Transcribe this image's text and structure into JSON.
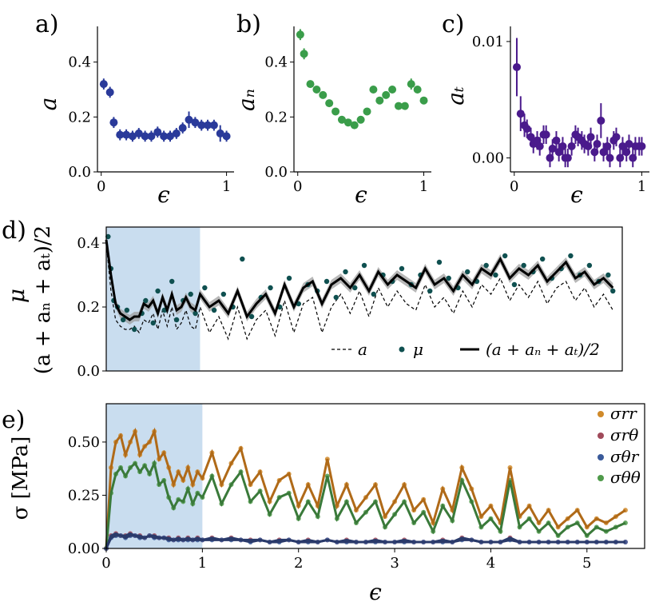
{
  "colors": {
    "a": "#2a3a9a",
    "an": "#3a9d4a",
    "at": "#4a1a8c",
    "mu": "#0f5050",
    "band": "#c9ddef",
    "rr": "#d08a2a",
    "rtheta": "#a04a5a",
    "thetar": "#3a5a9a",
    "thth": "#4f9a4a"
  },
  "chart_data": [
    {
      "id": "a",
      "type": "scatter",
      "panel_label": "a)",
      "ylabel": "a",
      "xlabel": "ϵ",
      "xlim": [
        -0.03,
        1.06
      ],
      "ylim": [
        0.0,
        0.53
      ],
      "xticks": [
        0,
        1
      ],
      "xtick_labels": [
        "0",
        "1"
      ],
      "yticks": [
        0.0,
        0.2,
        0.4
      ],
      "ytick_labels": [
        "0.0",
        "0.2",
        "0.4"
      ],
      "x": [
        0.02,
        0.07,
        0.1,
        0.15,
        0.2,
        0.25,
        0.3,
        0.35,
        0.4,
        0.45,
        0.5,
        0.55,
        0.6,
        0.65,
        0.7,
        0.75,
        0.8,
        0.85,
        0.9,
        0.95,
        1.0
      ],
      "y": [
        0.32,
        0.29,
        0.18,
        0.135,
        0.135,
        0.13,
        0.14,
        0.13,
        0.13,
        0.145,
        0.13,
        0.13,
        0.14,
        0.16,
        0.19,
        0.18,
        0.17,
        0.17,
        0.17,
        0.14,
        0.13
      ],
      "err": [
        0.02,
        0.02,
        0.02,
        0.02,
        0.02,
        0.02,
        0.02,
        0.02,
        0.02,
        0.02,
        0.02,
        0.02,
        0.02,
        0.02,
        0.03,
        0.02,
        0.02,
        0.02,
        0.02,
        0.03,
        0.02
      ]
    },
    {
      "id": "an",
      "type": "scatter",
      "panel_label": "b)",
      "ylabel": "aₙ",
      "xlabel": "ϵ",
      "xlim": [
        -0.03,
        1.06
      ],
      "ylim": [
        0.0,
        0.53
      ],
      "xticks": [
        0,
        1
      ],
      "xtick_labels": [
        "0",
        "1"
      ],
      "yticks": [
        0.0,
        0.2,
        0.4
      ],
      "ytick_labels": [
        "0.0",
        "0.2",
        "0.4"
      ],
      "x": [
        0.02,
        0.05,
        0.1,
        0.15,
        0.2,
        0.25,
        0.3,
        0.35,
        0.4,
        0.45,
        0.5,
        0.55,
        0.6,
        0.65,
        0.7,
        0.75,
        0.8,
        0.85,
        0.9,
        0.95,
        1.0
      ],
      "y": [
        0.5,
        0.43,
        0.32,
        0.3,
        0.28,
        0.25,
        0.22,
        0.19,
        0.18,
        0.17,
        0.19,
        0.22,
        0.3,
        0.26,
        0.28,
        0.3,
        0.24,
        0.24,
        0.32,
        0.3,
        0.26
      ],
      "err": [
        0.02,
        0.02,
        0.01,
        0.01,
        0.01,
        0.01,
        0.01,
        0.01,
        0.01,
        0.01,
        0.01,
        0.01,
        0.01,
        0.01,
        0.01,
        0.01,
        0.01,
        0.01,
        0.02,
        0.01,
        0.01
      ]
    },
    {
      "id": "at",
      "type": "scatter",
      "panel_label": "c)",
      "ylabel": "aₜ",
      "xlabel": "ϵ",
      "xlim": [
        -0.03,
        1.06
      ],
      "ylim": [
        -0.0012,
        0.0113
      ],
      "xticks": [
        0,
        1
      ],
      "xtick_labels": [
        "0",
        "1"
      ],
      "yticks": [
        0.0,
        0.01
      ],
      "ytick_labels": [
        "0.00",
        "0.01"
      ],
      "x": [
        0.02,
        0.05,
        0.08,
        0.1,
        0.13,
        0.15,
        0.18,
        0.2,
        0.23,
        0.25,
        0.28,
        0.3,
        0.33,
        0.35,
        0.38,
        0.4,
        0.42,
        0.45,
        0.48,
        0.5,
        0.53,
        0.55,
        0.58,
        0.6,
        0.63,
        0.65,
        0.68,
        0.7,
        0.73,
        0.75,
        0.78,
        0.8,
        0.83,
        0.85,
        0.88,
        0.9,
        0.93,
        0.95,
        0.98,
        1.0
      ],
      "y": [
        0.0078,
        0.0038,
        0.0028,
        0.0025,
        0.0018,
        0.0012,
        0.0015,
        0.001,
        0.002,
        0.002,
        0.0,
        0.0008,
        0.0015,
        0.0005,
        0.001,
        0.0,
        0.0,
        0.001,
        0.002,
        0.0018,
        0.0015,
        0.0012,
        0.001,
        0.0018,
        0.0005,
        0.0012,
        0.0032,
        0.0005,
        0.001,
        0.0,
        0.0015,
        0.0018,
        0.0,
        0.001,
        0.0005,
        0.0012,
        0.0,
        0.001,
        0.001,
        0.001
      ],
      "err": [
        0.0025,
        0.0015,
        0.001,
        0.0008,
        0.0008,
        0.0008,
        0.0008,
        0.0008,
        0.0008,
        0.0008,
        0.0008,
        0.0008,
        0.0008,
        0.0008,
        0.0008,
        0.0008,
        0.0008,
        0.0008,
        0.0008,
        0.0008,
        0.0008,
        0.0008,
        0.0008,
        0.0008,
        0.0008,
        0.0008,
        0.0015,
        0.0008,
        0.0008,
        0.0008,
        0.0008,
        0.0008,
        0.0008,
        0.0008,
        0.0008,
        0.0008,
        0.0008,
        0.0008,
        0.0008,
        0.0008
      ]
    },
    {
      "id": "mu",
      "type": "line",
      "panel_label": "d)",
      "ylabel_main": "μ",
      "ylabel_secondary": "(a + aₙ + aₜ)/2",
      "xlim": [
        0.0,
        5.5
      ],
      "ylim": [
        0.0,
        0.45
      ],
      "yticks": [
        0.0,
        0.2,
        0.4
      ],
      "ytick_labels": [
        "0.0",
        "0.2",
        "0.4"
      ],
      "shaded_region": [
        0.0,
        1.0
      ],
      "legend": [
        "a",
        "μ",
        "(a + aₙ + aₜ)/2"
      ],
      "x": [
        0.0,
        0.05,
        0.1,
        0.15,
        0.2,
        0.25,
        0.3,
        0.35,
        0.4,
        0.45,
        0.5,
        0.55,
        0.6,
        0.65,
        0.7,
        0.75,
        0.8,
        0.85,
        0.9,
        0.95,
        1.0,
        1.1,
        1.2,
        1.3,
        1.4,
        1.5,
        1.6,
        1.7,
        1.8,
        1.9,
        2.0,
        2.1,
        2.2,
        2.3,
        2.4,
        2.5,
        2.6,
        2.7,
        2.8,
        2.9,
        3.0,
        3.1,
        3.2,
        3.3,
        3.4,
        3.5,
        3.6,
        3.7,
        3.8,
        3.9,
        4.0,
        4.1,
        4.2,
        4.3,
        4.4,
        4.5,
        4.6,
        4.7,
        4.8,
        4.9,
        5.0,
        5.1,
        5.2,
        5.3,
        5.4
      ],
      "series": [
        {
          "name": "(a + aₙ + aₜ)/2",
          "values": [
            0.41,
            0.3,
            0.21,
            0.18,
            0.17,
            0.16,
            0.17,
            0.17,
            0.21,
            0.2,
            0.22,
            0.18,
            0.23,
            0.19,
            0.24,
            0.19,
            0.2,
            0.23,
            0.2,
            0.19,
            0.24,
            0.2,
            0.22,
            0.18,
            0.25,
            0.17,
            0.21,
            0.24,
            0.18,
            0.27,
            0.2,
            0.26,
            0.28,
            0.21,
            0.27,
            0.29,
            0.26,
            0.3,
            0.25,
            0.31,
            0.27,
            0.3,
            0.28,
            0.26,
            0.32,
            0.27,
            0.29,
            0.25,
            0.3,
            0.27,
            0.32,
            0.3,
            0.35,
            0.29,
            0.32,
            0.3,
            0.33,
            0.28,
            0.31,
            0.34,
            0.29,
            0.31,
            0.27,
            0.29,
            0.26
          ]
        },
        {
          "name": "a",
          "values": [
            0.4,
            0.25,
            0.16,
            0.14,
            0.13,
            0.13,
            0.14,
            0.12,
            0.16,
            0.15,
            0.18,
            0.13,
            0.19,
            0.14,
            0.2,
            0.13,
            0.15,
            0.19,
            0.14,
            0.13,
            0.2,
            0.12,
            0.17,
            0.1,
            0.2,
            0.1,
            0.16,
            0.19,
            0.11,
            0.22,
            0.12,
            0.21,
            0.23,
            0.12,
            0.2,
            0.24,
            0.18,
            0.25,
            0.17,
            0.26,
            0.2,
            0.25,
            0.21,
            0.19,
            0.27,
            0.2,
            0.23,
            0.18,
            0.25,
            0.2,
            0.27,
            0.24,
            0.29,
            0.22,
            0.27,
            0.23,
            0.28,
            0.21,
            0.26,
            0.28,
            0.22,
            0.26,
            0.2,
            0.24,
            0.19
          ]
        }
      ],
      "mu_scatter": {
        "x": [
          0.02,
          0.05,
          0.08,
          0.12,
          0.18,
          0.22,
          0.3,
          0.38,
          0.42,
          0.5,
          0.55,
          0.62,
          0.7,
          0.75,
          0.82,
          0.9,
          0.95,
          1.05,
          1.15,
          1.25,
          1.35,
          1.45,
          1.55,
          1.65,
          1.75,
          1.85,
          1.95,
          2.05,
          2.15,
          2.25,
          2.35,
          2.45,
          2.55,
          2.65,
          2.75,
          2.85,
          2.95,
          3.05,
          3.15,
          3.25,
          3.35,
          3.45,
          3.55,
          3.65,
          3.75,
          3.85,
          3.95,
          4.05,
          4.15,
          4.25,
          4.35,
          4.45,
          4.55,
          4.65,
          4.75,
          4.85,
          4.95,
          5.05,
          5.15,
          5.25,
          5.35,
          5.4
        ],
        "y": [
          0.42,
          0.32,
          0.22,
          0.2,
          0.16,
          0.19,
          0.13,
          0.18,
          0.22,
          0.15,
          0.25,
          0.19,
          0.28,
          0.16,
          0.22,
          0.24,
          0.18,
          0.26,
          0.19,
          0.24,
          0.2,
          0.35,
          0.17,
          0.23,
          0.26,
          0.2,
          0.29,
          0.21,
          0.27,
          0.25,
          0.28,
          0.23,
          0.31,
          0.26,
          0.33,
          0.24,
          0.3,
          0.28,
          0.32,
          0.27,
          0.3,
          0.25,
          0.34,
          0.29,
          0.26,
          0.31,
          0.28,
          0.33,
          0.3,
          0.36,
          0.27,
          0.33,
          0.31,
          0.35,
          0.29,
          0.32,
          0.36,
          0.3,
          0.33,
          0.28,
          0.3,
          0.25
        ]
      }
    },
    {
      "id": "stress",
      "type": "line",
      "panel_label": "e)",
      "ylabel": "σ [MPa]",
      "xlabel": "ϵ",
      "xlim": [
        0.0,
        5.6
      ],
      "ylim": [
        0.0,
        0.68
      ],
      "xticks": [
        0,
        1,
        2,
        3,
        4,
        5
      ],
      "xtick_labels": [
        "0",
        "1",
        "2",
        "3",
        "4",
        "5"
      ],
      "yticks": [
        0.0,
        0.25,
        0.5
      ],
      "ytick_labels": [
        "0.00",
        "0.25",
        "0.50"
      ],
      "shaded_region": [
        0.0,
        1.0
      ],
      "legend": [
        "σrr",
        "σrθ",
        "σθr",
        "σθθ"
      ],
      "x": [
        0.0,
        0.05,
        0.1,
        0.15,
        0.2,
        0.25,
        0.3,
        0.35,
        0.4,
        0.45,
        0.5,
        0.55,
        0.6,
        0.65,
        0.7,
        0.75,
        0.8,
        0.85,
        0.9,
        0.95,
        1.0,
        1.1,
        1.2,
        1.3,
        1.4,
        1.5,
        1.6,
        1.7,
        1.8,
        1.9,
        2.0,
        2.1,
        2.2,
        2.3,
        2.4,
        2.5,
        2.6,
        2.7,
        2.8,
        2.9,
        3.0,
        3.1,
        3.2,
        3.3,
        3.4,
        3.5,
        3.6,
        3.7,
        3.8,
        3.9,
        4.0,
        4.1,
        4.2,
        4.3,
        4.4,
        4.5,
        4.6,
        4.7,
        4.8,
        4.9,
        5.0,
        5.1,
        5.2,
        5.3,
        5.4
      ],
      "series": [
        {
          "name": "σrr",
          "values": [
            0.0,
            0.38,
            0.5,
            0.53,
            0.44,
            0.5,
            0.55,
            0.44,
            0.48,
            0.5,
            0.55,
            0.42,
            0.45,
            0.38,
            0.3,
            0.36,
            0.32,
            0.38,
            0.3,
            0.36,
            0.33,
            0.45,
            0.3,
            0.4,
            0.47,
            0.3,
            0.36,
            0.22,
            0.32,
            0.35,
            0.2,
            0.3,
            0.2,
            0.42,
            0.2,
            0.3,
            0.18,
            0.24,
            0.3,
            0.15,
            0.22,
            0.3,
            0.18,
            0.23,
            0.12,
            0.28,
            0.18,
            0.38,
            0.28,
            0.15,
            0.2,
            0.12,
            0.38,
            0.15,
            0.2,
            0.12,
            0.18,
            0.1,
            0.14,
            0.18,
            0.1,
            0.14,
            0.12,
            0.15,
            0.18
          ]
        },
        {
          "name": "σθθ",
          "values": [
            0.0,
            0.26,
            0.35,
            0.38,
            0.34,
            0.38,
            0.4,
            0.36,
            0.39,
            0.35,
            0.4,
            0.3,
            0.32,
            0.24,
            0.19,
            0.23,
            0.22,
            0.28,
            0.21,
            0.26,
            0.24,
            0.34,
            0.21,
            0.3,
            0.36,
            0.22,
            0.27,
            0.16,
            0.24,
            0.26,
            0.14,
            0.22,
            0.15,
            0.34,
            0.14,
            0.22,
            0.12,
            0.17,
            0.22,
            0.1,
            0.16,
            0.22,
            0.12,
            0.17,
            0.08,
            0.2,
            0.13,
            0.32,
            0.22,
            0.1,
            0.14,
            0.08,
            0.32,
            0.1,
            0.14,
            0.08,
            0.12,
            0.06,
            0.1,
            0.12,
            0.06,
            0.1,
            0.08,
            0.1,
            0.12
          ]
        },
        {
          "name": "σrθ",
          "values": [
            0.0,
            0.06,
            0.07,
            0.06,
            0.06,
            0.07,
            0.06,
            0.06,
            0.05,
            0.06,
            0.06,
            0.05,
            0.05,
            0.05,
            0.04,
            0.05,
            0.04,
            0.05,
            0.04,
            0.05,
            0.04,
            0.05,
            0.04,
            0.05,
            0.04,
            0.04,
            0.04,
            0.03,
            0.04,
            0.04,
            0.03,
            0.04,
            0.03,
            0.04,
            0.03,
            0.04,
            0.03,
            0.03,
            0.04,
            0.03,
            0.03,
            0.04,
            0.03,
            0.03,
            0.03,
            0.04,
            0.03,
            0.05,
            0.04,
            0.03,
            0.03,
            0.03,
            0.05,
            0.03,
            0.03,
            0.03,
            0.03,
            0.03,
            0.03,
            0.03,
            0.03,
            0.03,
            0.03,
            0.03,
            0.03
          ]
        },
        {
          "name": "σθr",
          "values": [
            0.0,
            0.05,
            0.06,
            0.06,
            0.05,
            0.06,
            0.06,
            0.05,
            0.05,
            0.06,
            0.05,
            0.05,
            0.05,
            0.04,
            0.04,
            0.04,
            0.04,
            0.04,
            0.04,
            0.04,
            0.04,
            0.04,
            0.04,
            0.04,
            0.04,
            0.03,
            0.04,
            0.03,
            0.03,
            0.04,
            0.03,
            0.03,
            0.03,
            0.04,
            0.03,
            0.03,
            0.03,
            0.03,
            0.03,
            0.03,
            0.03,
            0.03,
            0.03,
            0.03,
            0.03,
            0.03,
            0.03,
            0.04,
            0.04,
            0.03,
            0.03,
            0.03,
            0.04,
            0.03,
            0.03,
            0.03,
            0.03,
            0.03,
            0.03,
            0.03,
            0.03,
            0.03,
            0.03,
            0.03,
            0.03
          ]
        }
      ]
    }
  ]
}
